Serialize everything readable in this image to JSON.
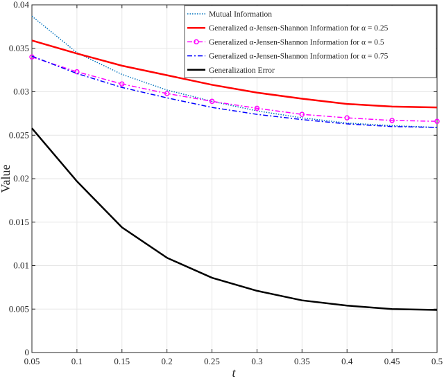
{
  "chart_data": {
    "type": "line",
    "xlabel": "t",
    "ylabel": "Value",
    "xlim": [
      0.05,
      0.5
    ],
    "ylim": [
      0,
      0.04
    ],
    "xticks": [
      "0.05",
      "0.1",
      "0.15",
      "0.2",
      "0.25",
      "0.3",
      "0.35",
      "0.4",
      "0.45",
      "0.5"
    ],
    "yticks": [
      "0",
      "0.005",
      "0.01",
      "0.015",
      "0.02",
      "0.025",
      "0.03",
      "0.035",
      "0.04"
    ],
    "grid": true,
    "legend_position": "top-right",
    "x": [
      0.05,
      0.1,
      0.15,
      0.2,
      0.25,
      0.3,
      0.35,
      0.4,
      0.45,
      0.5
    ],
    "series": [
      {
        "name": "Mutual Information",
        "color": "#0072BD",
        "style": "dotted",
        "values": [
          0.0387,
          0.0345,
          0.032,
          0.0302,
          0.0289,
          0.0278,
          0.027,
          0.0264,
          0.0261,
          0.0259
        ]
      },
      {
        "name": "Generalized α-Jensen-Shannon Information for α = 0.25",
        "color": "#FF0000",
        "style": "solid",
        "values": [
          0.0359,
          0.0344,
          0.033,
          0.0319,
          0.0308,
          0.0299,
          0.0292,
          0.0286,
          0.0283,
          0.0282
        ]
      },
      {
        "name": "Generalized α-Jensen-Shannon Information for α = 0.5",
        "color": "#FF00FF",
        "style": "dashdot-circle",
        "values": [
          0.034,
          0.0323,
          0.0309,
          0.0298,
          0.0289,
          0.0281,
          0.0274,
          0.027,
          0.0267,
          0.0266
        ]
      },
      {
        "name": "Generalized α-Jensen-Shannon Information for α = 0.75",
        "color": "#0000FF",
        "style": "dashdot",
        "values": [
          0.0341,
          0.0321,
          0.0305,
          0.0293,
          0.0282,
          0.0274,
          0.0268,
          0.0263,
          0.026,
          0.0259
        ]
      },
      {
        "name": "Generalization Error",
        "color": "#000000",
        "style": "solid",
        "values": [
          0.0258,
          0.0197,
          0.0144,
          0.0109,
          0.0086,
          0.0071,
          0.006,
          0.0054,
          0.005,
          0.0049
        ]
      }
    ]
  }
}
